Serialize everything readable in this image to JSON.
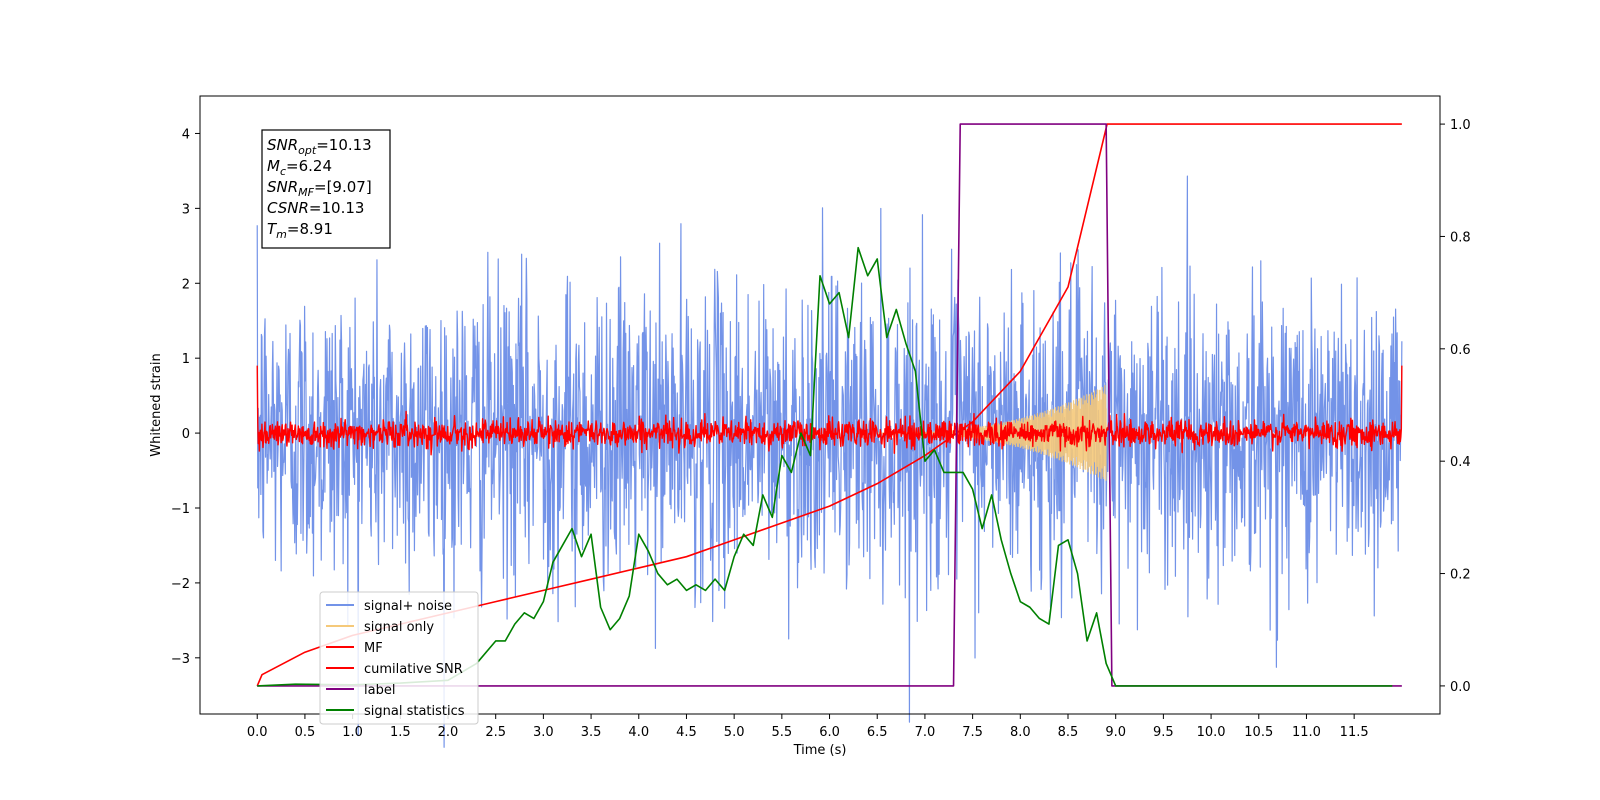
{
  "chart_data": {
    "type": "line",
    "xlabel": "Time (s)",
    "ylabel": "Whitened strain",
    "xlim": [
      -0.6,
      12.4
    ],
    "ylim": [
      -3.75,
      4.5
    ],
    "y2lim": [
      -0.05,
      1.05
    ],
    "xticks": [
      "0.0",
      "0.5",
      "1.0",
      "1.5",
      "2.0",
      "2.5",
      "3.0",
      "3.5",
      "4.0",
      "4.5",
      "5.0",
      "5.5",
      "6.0",
      "6.5",
      "7.0",
      "7.5",
      "8.0",
      "8.5",
      "9.0",
      "9.5",
      "10.0",
      "10.5",
      "11.0",
      "11.5"
    ],
    "yticks": [
      "−3",
      "−2",
      "−1",
      "0",
      "1",
      "2",
      "3",
      "4"
    ],
    "y2ticks": [
      "0.0",
      "0.2",
      "0.4",
      "0.6",
      "0.8",
      "1.0"
    ],
    "annotation": [
      {
        "main": "SNR",
        "sub": "opt",
        "value": "=10.13"
      },
      {
        "main": "M",
        "sub": "c",
        "value": "=6.24"
      },
      {
        "main": "SNR",
        "sub": "MF",
        "value": "=[9.07]"
      },
      {
        "main": "CSNR",
        "sub": "",
        "value": "=10.13"
      },
      {
        "main": "T",
        "sub": "m",
        "value": "=8.91"
      }
    ],
    "series": [
      {
        "name": "signal+ noise",
        "color": "#7393e8",
        "kind": "noise",
        "axis": "left",
        "x_range": [
          0,
          12
        ],
        "amplitude_sd": 1.0
      },
      {
        "name": "signal only",
        "color": "#f5c97a",
        "kind": "chirp",
        "axis": "left",
        "x_range": [
          6.5,
          8.9
        ],
        "peak_amplitude": 0.65
      },
      {
        "name": "MF",
        "color": "#ff0000",
        "kind": "noise",
        "axis": "left",
        "x_range": [
          0,
          12
        ],
        "amplitude_sd": 0.09
      },
      {
        "name": "cumilative SNR",
        "color": "#ff0000",
        "axis": "right",
        "x": [
          0.0,
          0.05,
          0.5,
          1.0,
          1.5,
          2.0,
          2.5,
          3.0,
          3.5,
          4.0,
          4.5,
          5.0,
          5.5,
          6.0,
          6.5,
          7.0,
          7.5,
          8.0,
          8.5,
          8.91,
          9.0,
          12.0
        ],
        "y": [
          0.0,
          0.02,
          0.06,
          0.09,
          0.11,
          0.13,
          0.15,
          0.17,
          0.19,
          0.21,
          0.23,
          0.26,
          0.29,
          0.32,
          0.36,
          0.41,
          0.47,
          0.56,
          0.71,
          1.0,
          1.0,
          1.0
        ]
      },
      {
        "name": "label",
        "color": "#800080",
        "axis": "right",
        "x": [
          0.0,
          7.3,
          7.37,
          8.9,
          8.96,
          12.0
        ],
        "y": [
          0.0,
          0.0,
          1.0,
          1.0,
          0.0,
          0.0
        ]
      },
      {
        "name": "signal statistics",
        "color": "#008000",
        "axis": "right",
        "x": [
          0.0,
          0.4,
          1.0,
          1.5,
          2.0,
          2.3,
          2.5,
          2.6,
          2.7,
          2.8,
          2.9,
          3.0,
          3.1,
          3.2,
          3.3,
          3.4,
          3.5,
          3.6,
          3.7,
          3.8,
          3.9,
          4.0,
          4.1,
          4.2,
          4.3,
          4.4,
          4.5,
          4.6,
          4.7,
          4.8,
          4.9,
          5.0,
          5.1,
          5.2,
          5.3,
          5.4,
          5.5,
          5.6,
          5.7,
          5.8,
          5.9,
          6.0,
          6.1,
          6.2,
          6.3,
          6.4,
          6.5,
          6.6,
          6.7,
          6.8,
          6.9,
          7.0,
          7.1,
          7.2,
          7.3,
          7.4,
          7.5,
          7.6,
          7.7,
          7.8,
          7.9,
          8.0,
          8.1,
          8.2,
          8.3,
          8.4,
          8.5,
          8.6,
          8.7,
          8.8,
          8.9,
          9.0,
          10.0,
          11.0,
          11.9
        ],
        "y": [
          0.0,
          0.003,
          0.002,
          0.005,
          0.01,
          0.04,
          0.08,
          0.08,
          0.11,
          0.13,
          0.12,
          0.15,
          0.22,
          0.25,
          0.28,
          0.23,
          0.27,
          0.14,
          0.1,
          0.12,
          0.16,
          0.27,
          0.24,
          0.2,
          0.18,
          0.19,
          0.17,
          0.18,
          0.17,
          0.19,
          0.17,
          0.23,
          0.27,
          0.25,
          0.34,
          0.3,
          0.41,
          0.38,
          0.45,
          0.41,
          0.73,
          0.68,
          0.7,
          0.62,
          0.78,
          0.73,
          0.76,
          0.62,
          0.67,
          0.61,
          0.56,
          0.4,
          0.42,
          0.38,
          0.38,
          0.38,
          0.35,
          0.28,
          0.34,
          0.26,
          0.2,
          0.15,
          0.14,
          0.12,
          0.11,
          0.25,
          0.26,
          0.2,
          0.08,
          0.13,
          0.04,
          0.0,
          0.0,
          0.0,
          0.0
        ]
      }
    ]
  }
}
